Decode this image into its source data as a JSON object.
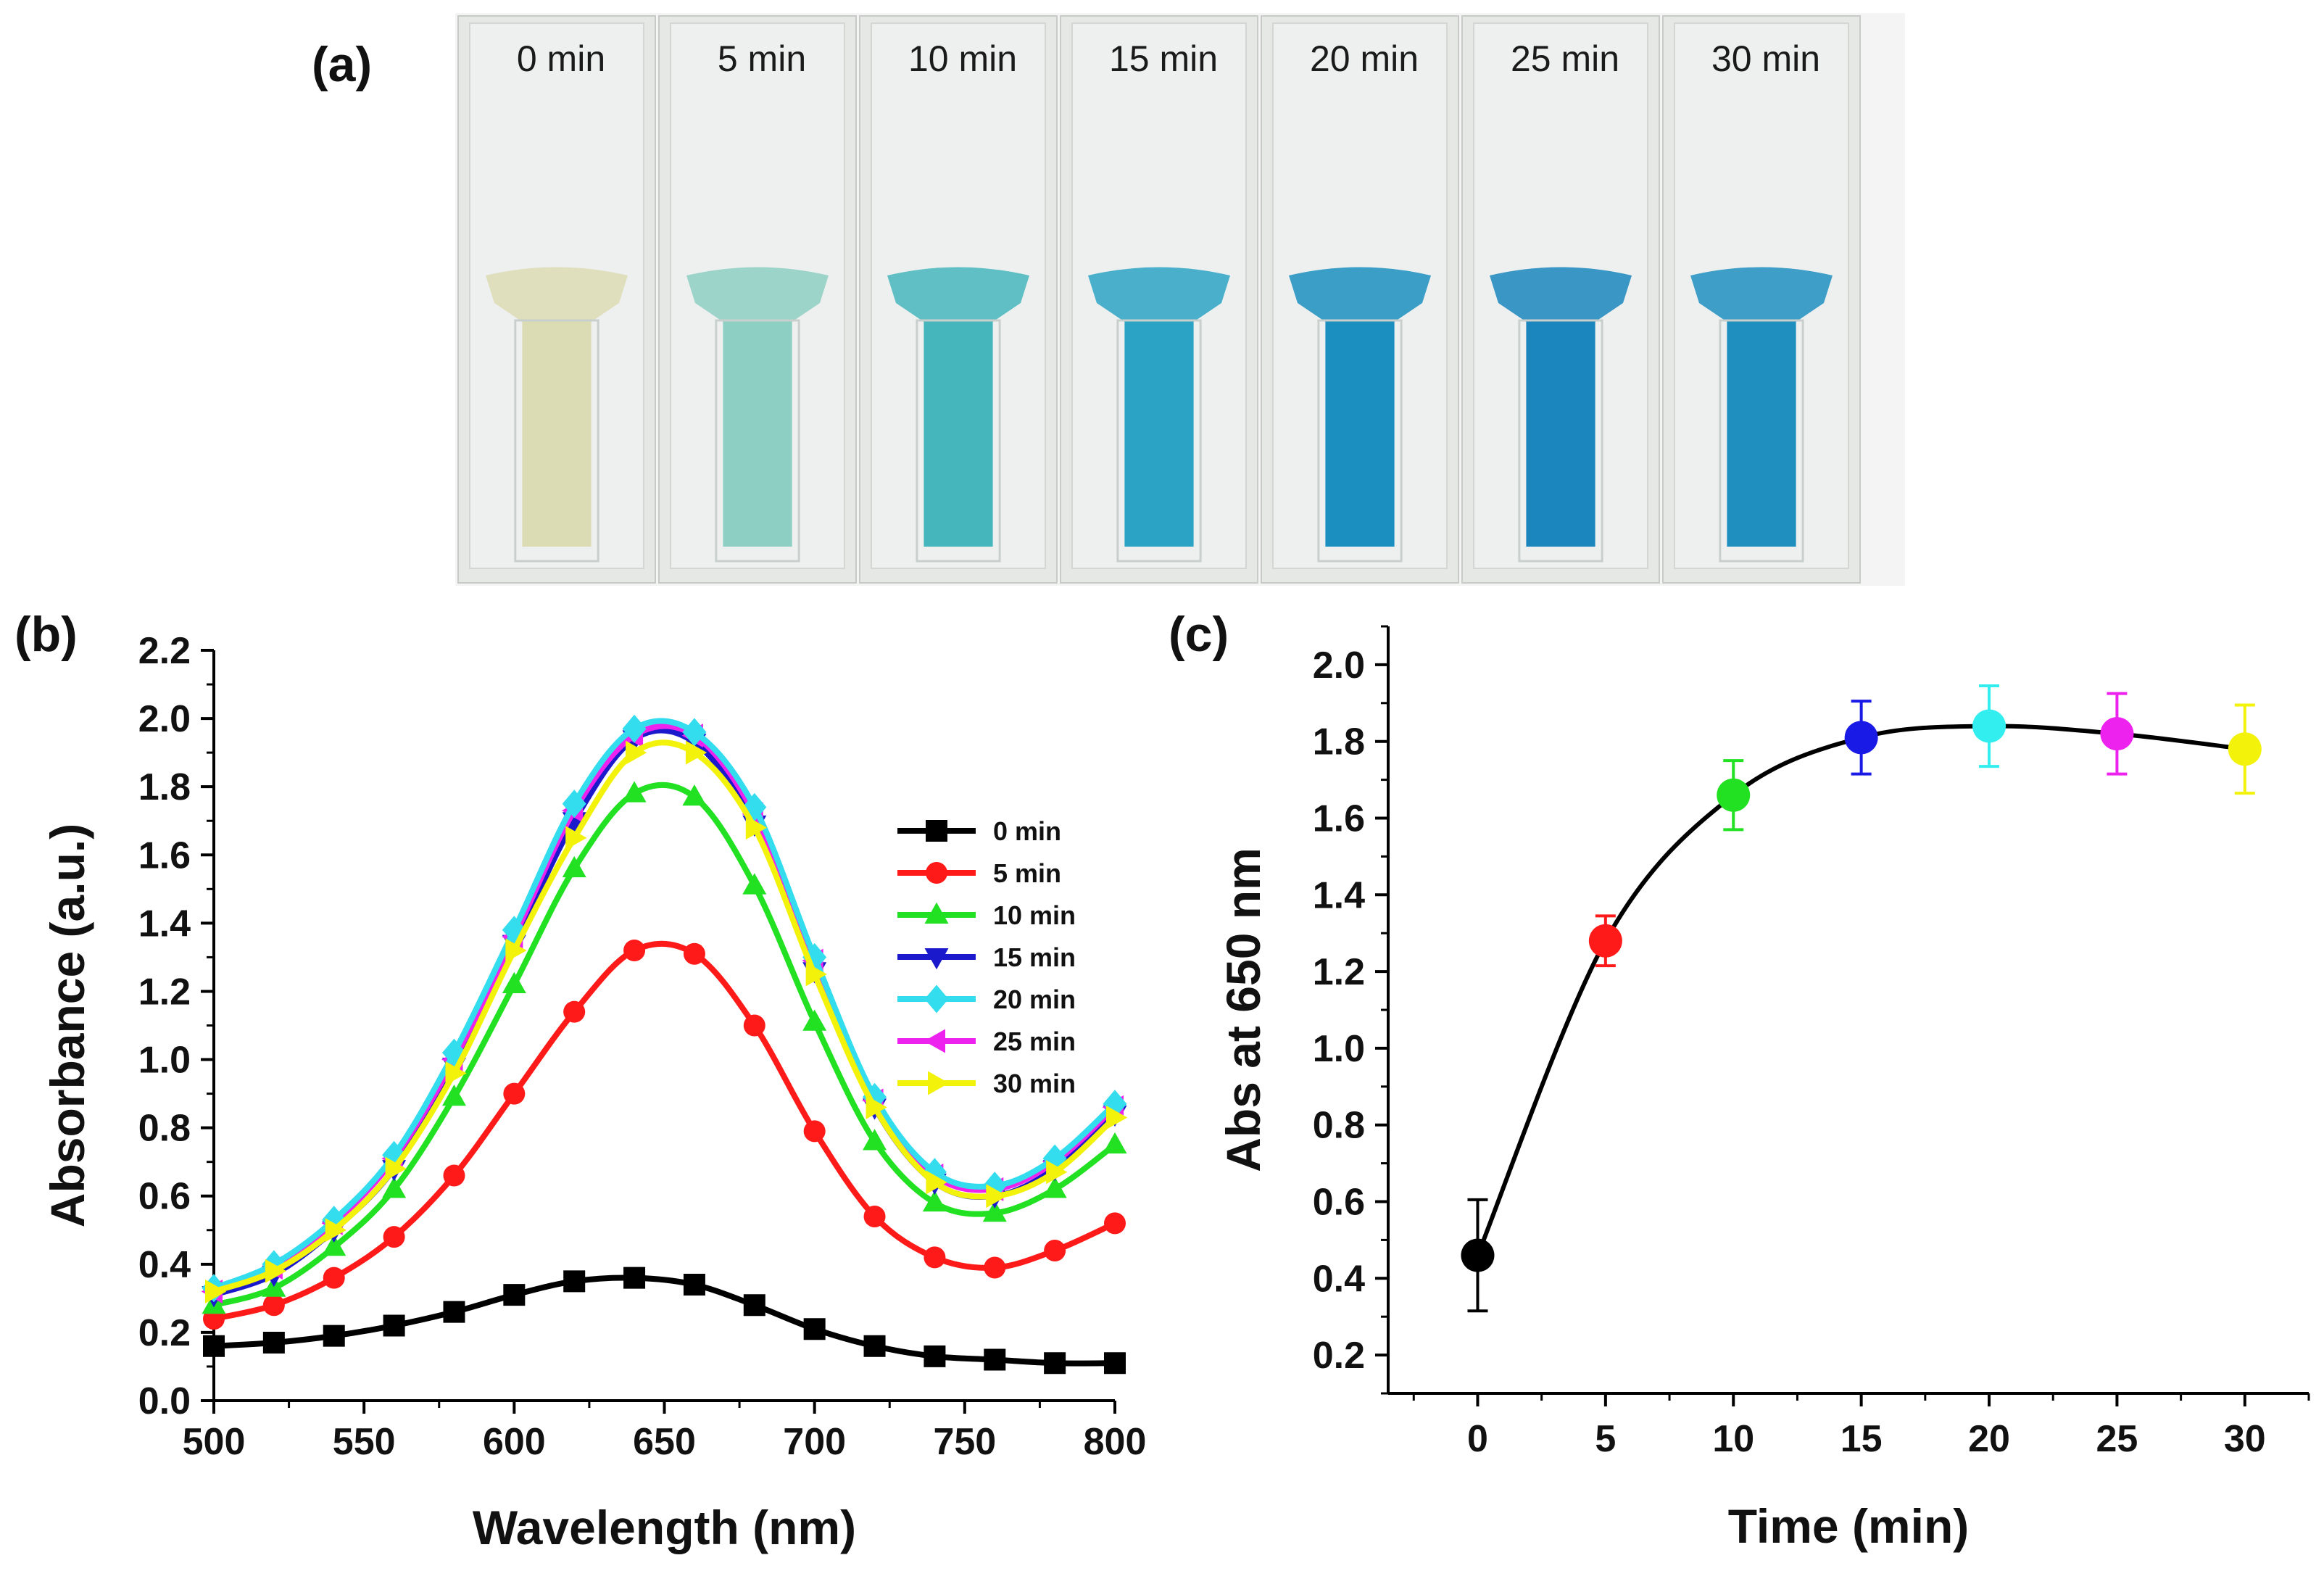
{
  "panel_labels": {
    "a": "(a)",
    "b": "(b)",
    "c": "(c)"
  },
  "cuvettes": {
    "labels": [
      "0 min",
      "5 min",
      "10 min",
      "15 min",
      "20 min",
      "25 min",
      "30 min"
    ],
    "colors": [
      "#dcdcb4",
      "#8ecfc3",
      "#45b6bc",
      "#2ba3c4",
      "#1a8fc0",
      "#1a86bd",
      "#1f8fc0"
    ]
  },
  "chart_data": [
    {
      "type": "line",
      "title": "",
      "xlabel": "Wavelength (nm)",
      "ylabel": "Absorbance (a.u.)",
      "xlim": [
        500,
        800
      ],
      "ylim": [
        0.0,
        2.2
      ],
      "xticks": [
        500,
        550,
        600,
        650,
        700,
        750,
        800
      ],
      "xtick_labels": [
        "500",
        "550",
        "600",
        "650",
        "700",
        "750",
        "800"
      ],
      "yticks": [
        0.0,
        0.2,
        0.4,
        0.6,
        0.8,
        1.0,
        1.2,
        1.4,
        1.6,
        1.8,
        2.0,
        2.2
      ],
      "ytick_labels": [
        "0.0",
        "0.2",
        "0.4",
        "0.6",
        "0.8",
        "1.0",
        "1.2",
        "1.4",
        "1.6",
        "1.8",
        "2.0",
        "2.2"
      ],
      "legend": "right",
      "x": [
        500,
        520,
        540,
        560,
        580,
        600,
        620,
        640,
        660,
        680,
        700,
        720,
        740,
        760,
        780,
        800
      ],
      "series": [
        {
          "name": "0 min",
          "color": "#000000",
          "marker": "square",
          "values": [
            0.16,
            0.17,
            0.19,
            0.22,
            0.26,
            0.31,
            0.35,
            0.36,
            0.34,
            0.28,
            0.21,
            0.16,
            0.13,
            0.12,
            0.11,
            0.11
          ]
        },
        {
          "name": "5 min",
          "color": "#ff1a1a",
          "marker": "circle",
          "values": [
            0.24,
            0.28,
            0.36,
            0.48,
            0.66,
            0.9,
            1.14,
            1.32,
            1.31,
            1.1,
            0.79,
            0.54,
            0.42,
            0.39,
            0.44,
            0.52
          ]
        },
        {
          "name": "10 min",
          "color": "#22e022",
          "marker": "triangle-up",
          "values": [
            0.28,
            0.33,
            0.45,
            0.62,
            0.89,
            1.22,
            1.56,
            1.78,
            1.77,
            1.51,
            1.11,
            0.76,
            0.58,
            0.55,
            0.62,
            0.75
          ]
        },
        {
          "name": "15 min",
          "color": "#1a1acc",
          "marker": "triangle-down",
          "values": [
            0.31,
            0.37,
            0.5,
            0.68,
            0.98,
            1.34,
            1.7,
            1.94,
            1.93,
            1.69,
            1.26,
            0.86,
            0.64,
            0.6,
            0.68,
            0.84
          ]
        },
        {
          "name": "20 min",
          "color": "#33ddee",
          "marker": "diamond",
          "values": [
            0.33,
            0.4,
            0.53,
            0.72,
            1.02,
            1.38,
            1.75,
            1.97,
            1.96,
            1.74,
            1.3,
            0.89,
            0.67,
            0.63,
            0.71,
            0.87
          ]
        },
        {
          "name": "25 min",
          "color": "#ee22ee",
          "marker": "triangle-left",
          "values": [
            0.32,
            0.39,
            0.52,
            0.71,
            1.0,
            1.36,
            1.73,
            1.95,
            1.95,
            1.72,
            1.29,
            0.88,
            0.66,
            0.62,
            0.7,
            0.86
          ]
        },
        {
          "name": "30 min",
          "color": "#f2f20a",
          "marker": "triangle-right",
          "values": [
            0.32,
            0.38,
            0.5,
            0.68,
            0.96,
            1.32,
            1.65,
            1.9,
            1.9,
            1.68,
            1.25,
            0.86,
            0.64,
            0.6,
            0.67,
            0.83
          ]
        }
      ]
    },
    {
      "type": "scatter",
      "title": "",
      "xlabel": "Time (min)",
      "ylabel": "Abs at 650 nm",
      "xlim": [
        -3.5,
        32.5
      ],
      "ylim": [
        0.1,
        2.1
      ],
      "xticks": [
        0,
        5,
        10,
        15,
        20,
        25,
        30
      ],
      "xtick_labels": [
        "0",
        "5",
        "10",
        "15",
        "20",
        "25",
        "30"
      ],
      "yticks": [
        0.2,
        0.4,
        0.6,
        0.8,
        1.0,
        1.2,
        1.4,
        1.6,
        1.8,
        2.0
      ],
      "ytick_labels": [
        "0.2",
        "0.4",
        "0.6",
        "0.8",
        "1.0",
        "1.2",
        "1.4",
        "1.6",
        "1.8",
        "2.0"
      ],
      "x": [
        0,
        5,
        10,
        15,
        20,
        25,
        30
      ],
      "values": [
        0.46,
        1.28,
        1.66,
        1.81,
        1.84,
        1.82,
        1.78
      ],
      "errors": [
        0.145,
        0.065,
        0.09,
        0.095,
        0.105,
        0.105,
        0.115
      ],
      "colors": [
        "#000000",
        "#ff1a1a",
        "#22e022",
        "#1a1ae6",
        "#33eeee",
        "#ee22ee",
        "#f2f20a"
      ],
      "line_color": "#000000"
    }
  ]
}
